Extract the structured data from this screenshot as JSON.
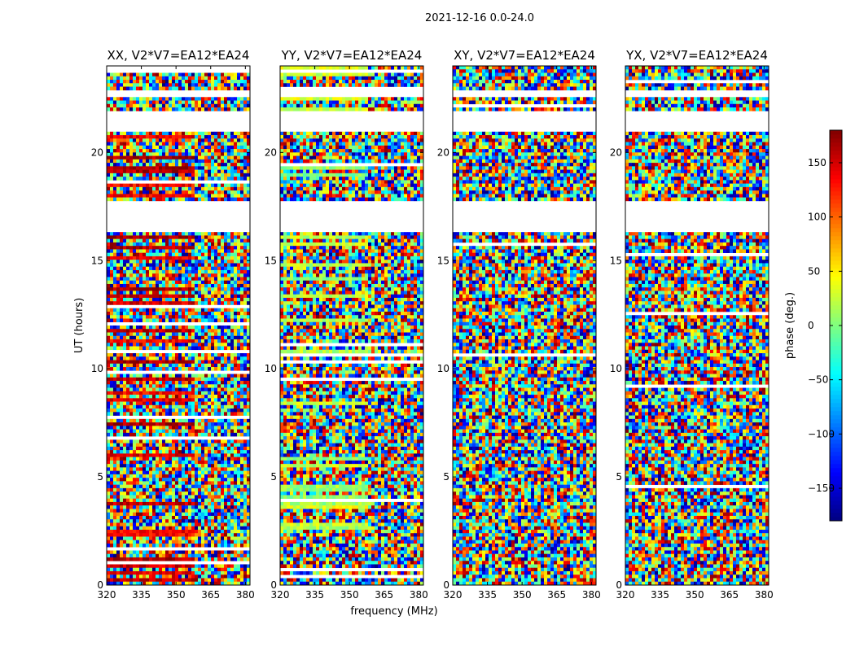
{
  "chart_data": {
    "type": "heatmap",
    "suptitle": "2021-12-16 0.0-24.0",
    "xlabel": "frequency (MHz)",
    "ylabel": "UT (hours)",
    "xlim": [
      320,
      382
    ],
    "ylim": [
      0,
      24
    ],
    "xticks": [
      320,
      335,
      350,
      365,
      380
    ],
    "yticks": [
      0,
      5,
      10,
      15,
      20
    ],
    "panels": [
      {
        "title": "XX, V2*V7=EA12*EA24",
        "pol": "XX"
      },
      {
        "title": "YY, V2*V7=EA12*EA24",
        "pol": "YY"
      },
      {
        "title": "XY, V2*V7=EA12*EA24",
        "pol": "XY"
      },
      {
        "title": "YX, V2*V7=EA12*EA24",
        "pol": "YX"
      }
    ],
    "flagged_ut_ranges": [
      [
        16.3,
        17.7
      ],
      [
        20.9,
        21.9
      ],
      [
        22.5,
        22.9
      ]
    ],
    "colorbar": {
      "label": "phase (deg.)",
      "range": [
        -180,
        180
      ],
      "ticks": [
        -150,
        -100,
        -50,
        0,
        50,
        100,
        150
      ],
      "colormap": "jet"
    }
  }
}
